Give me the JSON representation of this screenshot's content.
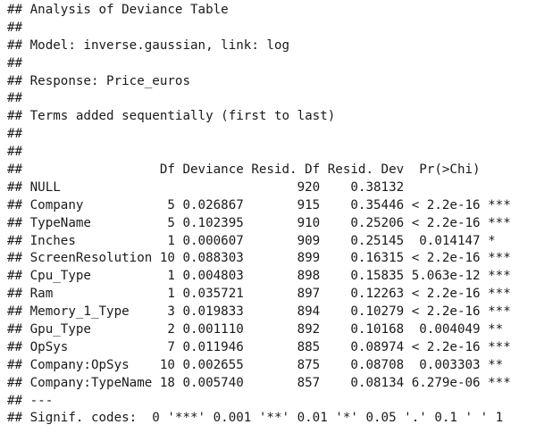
{
  "output": {
    "lines": [
      "## Analysis of Deviance Table",
      "##",
      "## Model: inverse.gaussian, link: log",
      "##",
      "## Response: Price_euros",
      "##",
      "## Terms added sequentially (first to last)",
      "##",
      "##",
      "##                  Df Deviance Resid. Df Resid. Dev  Pr(>Chi)",
      "## NULL                               920    0.38132",
      "## Company           5 0.026867       915    0.35446 < 2.2e-16 ***",
      "## TypeName          5 0.102395       910    0.25206 < 2.2e-16 ***",
      "## Inches            1 0.000607       909    0.25145  0.014147 *",
      "## ScreenResolution 10 0.088303       899    0.16315 < 2.2e-16 ***",
      "## Cpu_Type          1 0.004803       898    0.15835 5.063e-12 ***",
      "## Ram               1 0.035721       897    0.12263 < 2.2e-16 ***",
      "## Memory_1_Type     3 0.019833       894    0.10279 < 2.2e-16 ***",
      "## Gpu_Type          2 0.001110       892    0.10168  0.004049 **",
      "## OpSys             7 0.011946       885    0.08974 < 2.2e-16 ***",
      "## Company:OpSys    10 0.002655       875    0.08708  0.003303 **",
      "## Company:TypeName 18 0.005740       857    0.08134 6.279e-06 ***",
      "## ---",
      "## Signif. codes:  0 '***' 0.001 '**' 0.01 '*' 0.05 '.' 0.1 ' ' 1"
    ]
  }
}
